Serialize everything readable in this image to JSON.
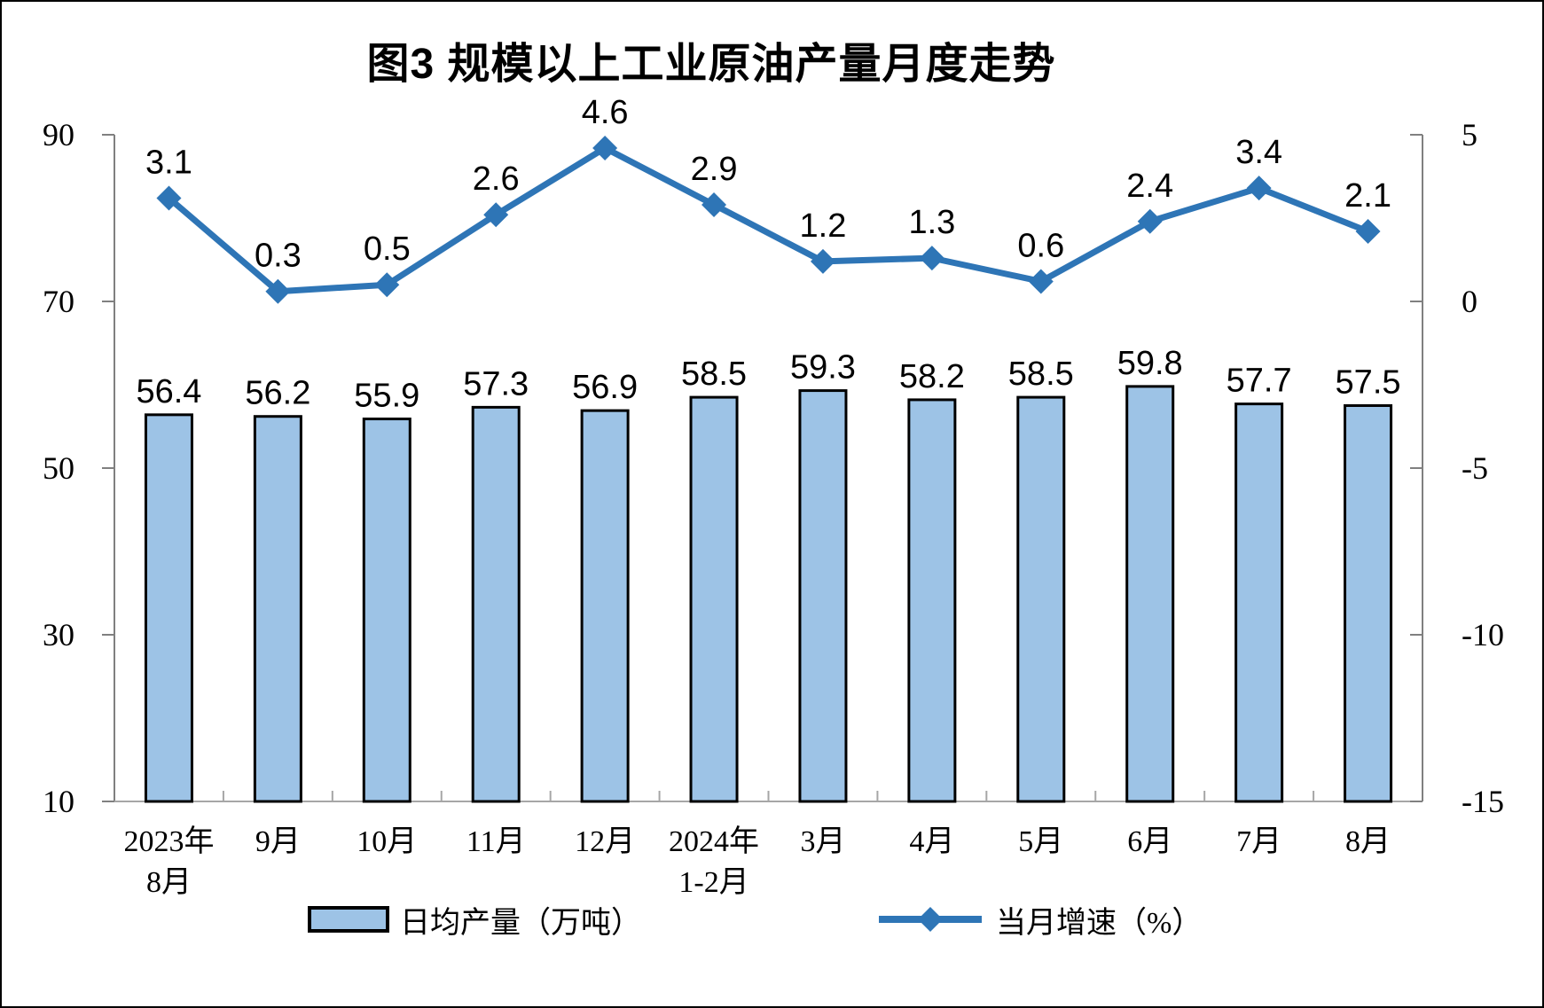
{
  "chart_data": {
    "type": "combo",
    "title": "图3 规模以上工业原油产量月度走势",
    "categories": [
      "2023年\n8月",
      "9月",
      "10月",
      "11月",
      "12月",
      "2024年\n1-2月",
      "3月",
      "4月",
      "5月",
      "6月",
      "7月",
      "8月"
    ],
    "series": [
      {
        "name": "日均产量（万吨）",
        "type": "bar",
        "axis": "left",
        "values": [
          56.4,
          56.2,
          55.9,
          57.3,
          56.9,
          58.5,
          59.3,
          58.2,
          58.5,
          59.8,
          57.7,
          57.5
        ]
      },
      {
        "name": "当月增速（%）",
        "type": "line",
        "axis": "right",
        "values": [
          3.1,
          0.3,
          0.5,
          2.6,
          4.6,
          2.9,
          1.2,
          1.3,
          0.6,
          2.4,
          3.4,
          2.1
        ]
      }
    ],
    "left_axis": {
      "range": [
        10,
        90
      ],
      "ticks": [
        10,
        30,
        50,
        70,
        90
      ]
    },
    "right_axis": {
      "range": [
        -15,
        5
      ],
      "ticks": [
        -15,
        -10,
        -5,
        0,
        5
      ]
    },
    "grid": false,
    "legend_position": "bottom"
  },
  "colors": {
    "bar_fill": "#9DC3E6",
    "bar_border": "#000000",
    "line": "#2E75B6",
    "axis": "#808080",
    "baseline": "#A6A6A6",
    "text": "#000000"
  }
}
